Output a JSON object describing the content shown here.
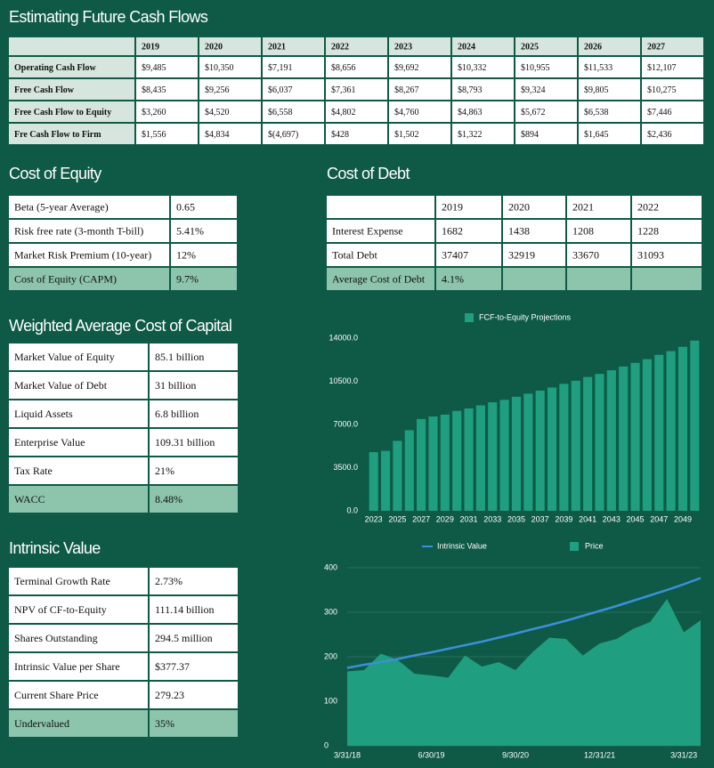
{
  "title": "Estimating Future Cash Flows",
  "cash_flows": {
    "columns": [
      "2019",
      "2020",
      "2021",
      "2022",
      "2023",
      "2024",
      "2025",
      "2026",
      "2027"
    ],
    "rows": [
      {
        "label": "Operating Cash Flow",
        "values": [
          "$9,485",
          "$10,350",
          "$7,191",
          "$8,656",
          "$9,692",
          "$10,332",
          "$10,955",
          "$11,533",
          "$12,107"
        ]
      },
      {
        "label": "Free Cash Flow",
        "values": [
          "$8,435",
          "$9,256",
          "$6,037",
          "$7,361",
          "$8,267",
          "$8,793",
          "$9,324",
          "$9,805",
          "$10,275"
        ]
      },
      {
        "label": "Free Cash Flow to Equity",
        "values": [
          "$3,260",
          "$4,520",
          "$6,558",
          "$4,802",
          "$4,760",
          "$4,863",
          "$5,672",
          "$6,538",
          "$7,446"
        ]
      },
      {
        "label": "Fre Cash Flow to Firm",
        "values": [
          "$1,556",
          "$4,834",
          "$(4,697)",
          "$428",
          "$1,502",
          "$1,322",
          "$894",
          "$1,645",
          "$2,436"
        ]
      }
    ]
  },
  "cost_of_equity": {
    "title": "Cost of Equity",
    "rows": [
      {
        "label": "Beta (5-year Average)",
        "value": "0.65"
      },
      {
        "label": "Risk free rate  (3-month T-bill)",
        "value": "5.41%"
      },
      {
        "label": "Market Risk Premium (10-year)",
        "value": "12%"
      },
      {
        "label": "Cost of Equity (CAPM)",
        "value": "9.7%"
      }
    ]
  },
  "cost_of_debt": {
    "title": "Cost of Debt",
    "columns": [
      "2019",
      "2020",
      "2021",
      "2022"
    ],
    "rows": [
      {
        "label": "Interest Expense",
        "values": [
          "1682",
          "1438",
          "1208",
          "1228"
        ]
      },
      {
        "label": "Total Debt",
        "values": [
          "37407",
          "32919",
          "33670",
          "31093"
        ]
      }
    ],
    "average": {
      "label": "Average Cost of Debt",
      "value": "4.1%"
    }
  },
  "wacc": {
    "title": "Weighted Average Cost of Capital",
    "rows": [
      {
        "label": "Market Value of Equity",
        "value": "85.1 billion"
      },
      {
        "label": "Market Value of Debt",
        "value": "31 billion"
      },
      {
        "label": "Liquid Assets",
        "value": "6.8 billion"
      },
      {
        "label": "Enterprise Value",
        "value": "109.31 billion"
      },
      {
        "label": "Tax Rate",
        "value": "21%"
      },
      {
        "label": "WACC",
        "value": "8.48%"
      }
    ]
  },
  "intrinsic_value": {
    "title": "Intrinsic Value",
    "rows": [
      {
        "label": "Terminal Growth Rate",
        "value": "2.73%"
      },
      {
        "label": "NPV of CF-to-Equity",
        "value": "111.14 billion"
      },
      {
        "label": "Shares Outstanding",
        "value": "294.5 million"
      },
      {
        "label": "Intrinsic Value per Share",
        "value": "$377.37"
      },
      {
        "label": "Current Share Price",
        "value": "279.23"
      },
      {
        "label": "Undervalued",
        "value": "35%"
      }
    ]
  },
  "chart_data": [
    {
      "type": "bar",
      "categories": [
        "2023",
        null,
        "2025",
        null,
        "2027",
        null,
        "2029",
        null,
        "2031",
        null,
        "2033",
        null,
        "2035",
        null,
        "2037",
        null,
        "2039",
        null,
        "2041",
        null,
        "2043",
        null,
        "2045",
        null,
        "2047",
        null,
        "2049",
        null
      ],
      "series": [
        {
          "name": "FCF-to-Equity Projections",
          "color": "#1f9e80",
          "values": [
            4760,
            4863,
            5672,
            6538,
            7446,
            7650,
            7800,
            8100,
            8300,
            8550,
            8800,
            9000,
            9250,
            9500,
            9750,
            10000,
            10300,
            10550,
            10850,
            11100,
            11400,
            11700,
            12000,
            12300,
            12650,
            12950,
            13300,
            13800
          ]
        }
      ],
      "ylim": [
        0,
        14000
      ],
      "yticks": [
        {
          "value": 0,
          "label": "0.0"
        },
        {
          "value": 3500,
          "label": "3500.0"
        },
        {
          "value": 7000,
          "label": "7000.0"
        },
        {
          "value": 10500,
          "label": "10500.0"
        },
        {
          "value": 14000,
          "label": "14000.0"
        }
      ],
      "grid": false,
      "legend": "top"
    },
    {
      "type": "line",
      "categories": [
        "3/31/18",
        null,
        null,
        null,
        null,
        "6/30/19",
        null,
        null,
        null,
        null,
        "9/30/20",
        null,
        null,
        null,
        null,
        "12/31/21",
        null,
        null,
        null,
        null,
        "3/31/23",
        null
      ],
      "series": [
        {
          "name": "Intrinsic Value",
          "color": "#3b8fd9",
          "style": "line",
          "values": [
            175,
            182,
            188,
            195,
            203,
            210,
            218,
            226,
            234,
            243,
            252,
            262,
            271,
            281,
            292,
            303,
            314,
            326,
            338,
            350,
            363,
            377
          ]
        },
        {
          "name": "Price",
          "color": "#1f9e80",
          "style": "area",
          "values": [
            167,
            170,
            207,
            193,
            162,
            158,
            153,
            203,
            178,
            188,
            170,
            210,
            243,
            240,
            203,
            230,
            240,
            263,
            278,
            330,
            255,
            282
          ]
        }
      ],
      "ylim": [
        0,
        400
      ],
      "yticks": [
        0,
        100,
        200,
        300,
        400
      ],
      "grid": true,
      "legend": "top"
    }
  ]
}
